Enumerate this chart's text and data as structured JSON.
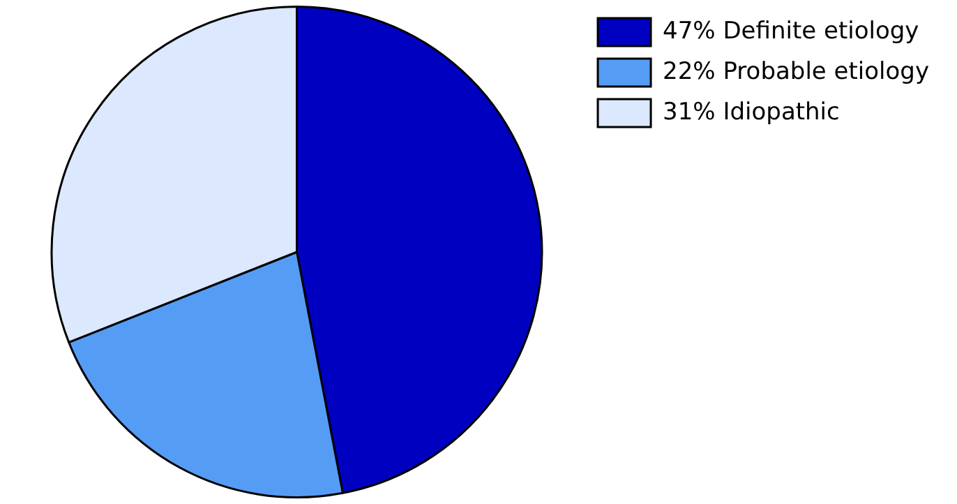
{
  "chart_data": {
    "type": "pie",
    "categories": [
      "47% Definite etiology",
      "22% Probable etiology",
      "31% Idiopathic"
    ],
    "values": [
      47,
      22,
      31
    ],
    "colors": [
      "#0000c0",
      "#559cf5",
      "#dbe8fd"
    ],
    "legend": "top right"
  }
}
